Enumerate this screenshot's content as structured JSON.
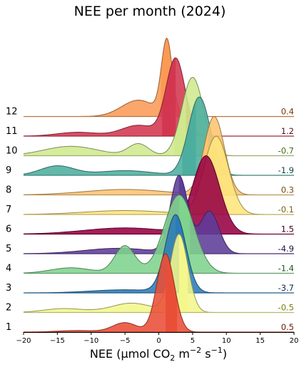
{
  "chart_data": {
    "type": "ridgeline",
    "title": "NEE per month (2024)",
    "xlabel": {
      "prefix": "NEE (µmol CO",
      "sub": "2",
      "mid": " m",
      "sup1": "−2",
      "mid2": " s",
      "sup2": "−1",
      "suffix": ")"
    },
    "xlim": [
      -20,
      20
    ],
    "xticks": [
      -20,
      -15,
      -10,
      -5,
      0,
      5,
      10,
      15,
      20
    ],
    "xtick_labels": [
      "−20",
      "−15",
      "−10",
      "−5",
      "0",
      "5",
      "10",
      "15",
      "20"
    ],
    "series": [
      {
        "month": "1",
        "mean": "0.5",
        "color": "#e94f37",
        "label_color": "#6b1a0a",
        "components": [
          {
            "mu": 1.0,
            "sigma": 1.3,
            "w": 1.0
          },
          {
            "mu": -5.0,
            "sigma": 1.8,
            "w": 0.12
          },
          {
            "mu": -12.0,
            "sigma": 3.0,
            "w": 0.02
          }
        ],
        "highlight": [
          1.0,
          2.7
        ]
      },
      {
        "month": "2",
        "mean": "-0.5",
        "color": "#f4f78c",
        "label_color": "#7d7f12",
        "components": [
          {
            "mu": 3.0,
            "sigma": 1.3,
            "w": 1.0
          },
          {
            "mu": -4.0,
            "sigma": 3.0,
            "w": 0.12
          },
          {
            "mu": -14.0,
            "sigma": 3.0,
            "w": 0.05
          }
        ],
        "highlight": [
          3.0,
          4.3
        ]
      },
      {
        "month": "3",
        "mean": "-3.7",
        "color": "#2c7bb6",
        "label_color": "#0b2a4a",
        "components": [
          {
            "mu": 2.5,
            "sigma": 1.5,
            "w": 1.0
          },
          {
            "mu": -5.0,
            "sigma": 5.0,
            "w": 0.04
          }
        ],
        "highlight": [
          2.5,
          4.0
        ]
      },
      {
        "month": "4",
        "mean": "-1.4",
        "color": "#7fd38d",
        "label_color": "#1d5c2a",
        "components": [
          {
            "mu": 3.0,
            "sigma": 2.2,
            "w": 1.0
          },
          {
            "mu": -5.0,
            "sigma": 1.5,
            "w": 0.35
          },
          {
            "mu": -13.0,
            "sigma": 3.0,
            "w": 0.07
          }
        ],
        "highlight": [
          3.0,
          4.6
        ]
      },
      {
        "month": "5",
        "mean": "-4.9",
        "color": "#5e3c99",
        "label_color": "#22143b",
        "components": [
          {
            "mu": 3.0,
            "sigma": 1.3,
            "w": 1.0
          },
          {
            "mu": 7.5,
            "sigma": 1.4,
            "w": 0.55
          },
          {
            "mu": -6.0,
            "sigma": 5.0,
            "w": 0.07
          }
        ],
        "highlight": [
          3.0,
          4.3
        ]
      },
      {
        "month": "6",
        "mean": "1.5",
        "color": "#960043",
        "label_color": "#3a0019",
        "components": [
          {
            "mu": 7.0,
            "sigma": 2.0,
            "w": 1.0
          },
          {
            "mu": -5.0,
            "sigma": 6.0,
            "w": 0.08
          }
        ],
        "highlight": [
          2.5,
          4.5
        ]
      },
      {
        "month": "7",
        "mean": "-0.1",
        "color": "#fee57c",
        "label_color": "#7a6212",
        "components": [
          {
            "mu": 8.5,
            "sigma": 1.8,
            "w": 1.0
          },
          {
            "mu": -5.0,
            "sigma": 6.0,
            "w": 0.05
          }
        ],
        "highlight": [
          5.0,
          7.0
        ]
      },
      {
        "month": "8",
        "mean": "0.3",
        "color": "#fdc46f",
        "label_color": "#7a4c0a",
        "components": [
          {
            "mu": 8.2,
            "sigma": 1.5,
            "w": 1.0
          },
          {
            "mu": -5.0,
            "sigma": 6.0,
            "w": 0.07
          }
        ],
        "highlight": [
          5.5,
          7.3
        ]
      },
      {
        "month": "9",
        "mean": "-1.9",
        "color": "#4cae9f",
        "label_color": "#134a42",
        "components": [
          {
            "mu": 6.0,
            "sigma": 1.6,
            "w": 1.0
          },
          {
            "mu": -15.0,
            "sigma": 2.5,
            "w": 0.12
          },
          {
            "mu": -5.0,
            "sigma": 4.0,
            "w": 0.06
          }
        ],
        "highlight": [
          3.5,
          5.5
        ]
      },
      {
        "month": "10",
        "mean": "-0.7",
        "color": "#cfe98e",
        "label_color": "#4b6d12",
        "components": [
          {
            "mu": 5.0,
            "sigma": 1.6,
            "w": 1.0
          },
          {
            "mu": -3.0,
            "sigma": 1.5,
            "w": 0.15
          },
          {
            "mu": -13.0,
            "sigma": 4.0,
            "w": 0.12
          }
        ],
        "highlight": [
          2.3,
          4.0
        ]
      },
      {
        "month": "11",
        "mean": "1.2",
        "color": "#d33750",
        "label_color": "#5c0f1c",
        "components": [
          {
            "mu": 2.5,
            "sigma": 1.4,
            "w": 1.0
          },
          {
            "mu": -3.0,
            "sigma": 2.5,
            "w": 0.14
          },
          {
            "mu": -12.0,
            "sigma": 3.0,
            "w": 0.05
          }
        ],
        "highlight": [
          0.5,
          2.5
        ]
      },
      {
        "month": "12",
        "mean": "0.4",
        "color": "#fb9a55",
        "label_color": "#7a3608",
        "components": [
          {
            "mu": 1.2,
            "sigma": 0.8,
            "w": 1.0
          },
          {
            "mu": -3.0,
            "sigma": 2.5,
            "w": 0.22
          }
        ],
        "highlight": [
          0.3,
          1.7
        ]
      }
    ]
  }
}
